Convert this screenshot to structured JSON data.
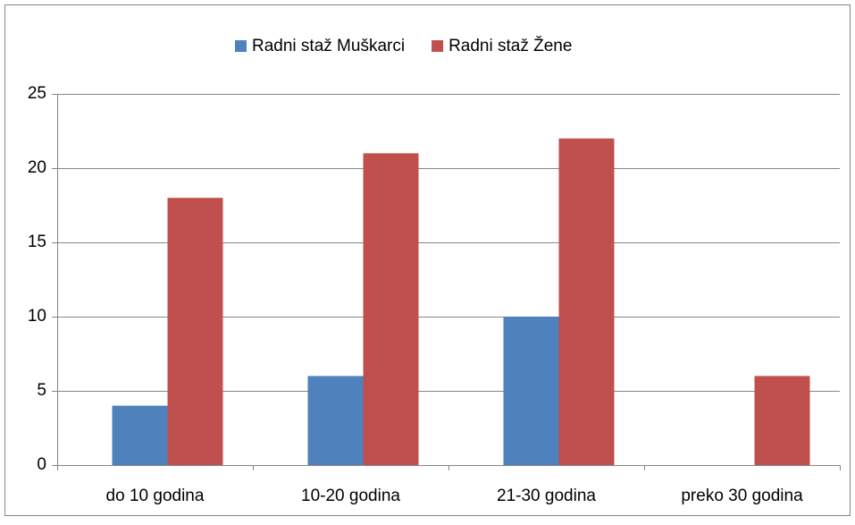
{
  "chart_data": {
    "type": "bar",
    "categories": [
      "do 10 godina",
      "10-20 godina",
      "21-30 godina",
      "preko 30 godina"
    ],
    "series": [
      {
        "name": "Radni staž Muškarci",
        "color": "#4f81bd",
        "values": [
          4,
          6,
          10,
          0
        ]
      },
      {
        "name": "Radni staž Žene",
        "color": "#c0504d",
        "values": [
          18,
          21,
          22,
          6
        ]
      }
    ],
    "ylim": [
      0,
      25
    ],
    "yticks": [
      0,
      5,
      10,
      15,
      20,
      25
    ],
    "grid": true,
    "legend": "top"
  }
}
